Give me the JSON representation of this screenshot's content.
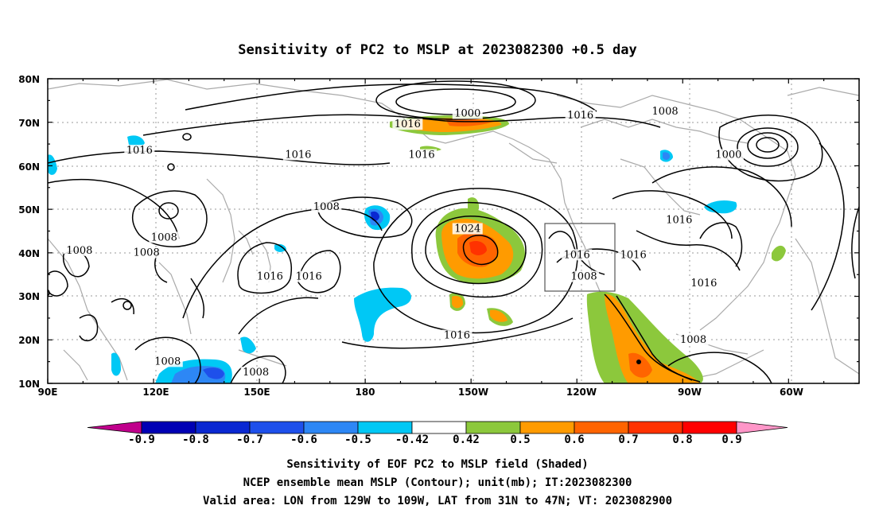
{
  "title": "Sensitivity of PC2 to MSLP at 2023082300 +0.5 day",
  "map": {
    "lon_labels": [
      "90E",
      "120E",
      "150E",
      "180",
      "150W",
      "120W",
      "90W",
      "60W"
    ],
    "lat_labels": [
      "80N",
      "70N",
      "60N",
      "50N",
      "40N",
      "30N",
      "20N",
      "10N"
    ],
    "contour_labels": [
      {
        "text": "1000",
        "lon": 209,
        "lat": 71.5
      },
      {
        "text": "1016",
        "lon": 192,
        "lat": 69
      },
      {
        "text": "1016",
        "lon": 241,
        "lat": 71
      },
      {
        "text": "1008",
        "lon": 265,
        "lat": 72
      },
      {
        "text": "1000",
        "lon": 283,
        "lat": 62
      },
      {
        "text": "1016",
        "lon": 116,
        "lat": 63
      },
      {
        "text": "1016",
        "lon": 161,
        "lat": 62
      },
      {
        "text": "1016",
        "lon": 196,
        "lat": 62
      },
      {
        "text": "1008",
        "lon": 169,
        "lat": 50
      },
      {
        "text": "1008",
        "lon": 123,
        "lat": 43
      },
      {
        "text": "1008",
        "lon": 99,
        "lat": 40
      },
      {
        "text": "1008",
        "lon": 118,
        "lat": 39.5
      },
      {
        "text": "1016",
        "lon": 153,
        "lat": 34
      },
      {
        "text": "1016",
        "lon": 164,
        "lat": 34
      },
      {
        "text": "1024",
        "lon": 209,
        "lat": 45
      },
      {
        "text": "1016",
        "lon": 240,
        "lat": 39
      },
      {
        "text": "1016",
        "lon": 256,
        "lat": 39
      },
      {
        "text": "1008",
        "lon": 242,
        "lat": 34
      },
      {
        "text": "1016",
        "lon": 269,
        "lat": 47
      },
      {
        "text": "1016",
        "lon": 276,
        "lat": 32.5
      },
      {
        "text": "1016",
        "lon": 206,
        "lat": 20.5
      },
      {
        "text": "1008",
        "lon": 273,
        "lat": 19.5
      },
      {
        "text": "1008",
        "lon": 124,
        "lat": 14.5
      },
      {
        "text": "1008",
        "lon": 149,
        "lat": 12
      }
    ]
  },
  "colorbar": {
    "labels": [
      "-0.9",
      "-0.8",
      "-0.7",
      "-0.6",
      "-0.5",
      "-0.42",
      "0.42",
      "0.5",
      "0.6",
      "0.7",
      "0.8",
      "0.9"
    ],
    "colors": [
      "#c0008c",
      "#0000b4",
      "#0a28d2",
      "#1e50eb",
      "#2d87f5",
      "#00c8f5",
      "#ffffff",
      "#8cc83c",
      "#ff9b00",
      "#ff6400",
      "#ff3200",
      "#ff0000",
      "#ff96c8"
    ]
  },
  "captions": [
    "Sensitivity of EOF PC2 to MSLP field (Shaded)",
    "NCEP ensemble mean MSLP (Contour); unit(mb); IT:2023082300",
    "Valid area: LON from 129W to 109W, LAT from 31N to 47N; VT: 2023082900"
  ]
}
